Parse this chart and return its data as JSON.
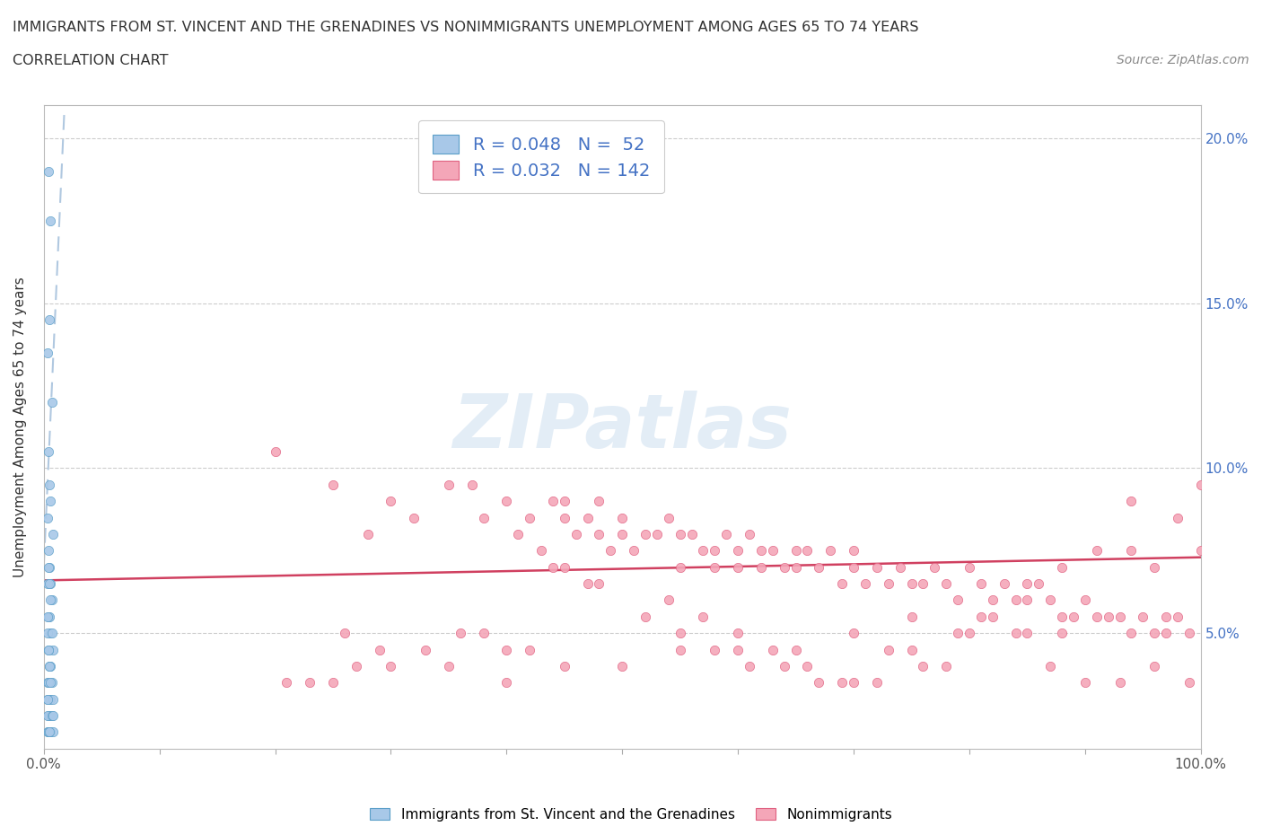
{
  "title_line1": "IMMIGRANTS FROM ST. VINCENT AND THE GRENADINES VS NONIMMIGRANTS UNEMPLOYMENT AMONG AGES 65 TO 74 YEARS",
  "title_line2": "CORRELATION CHART",
  "source_text": "Source: ZipAtlas.com",
  "ylabel": "Unemployment Among Ages 65 to 74 years",
  "xlim": [
    0,
    100
  ],
  "ylim": [
    1.5,
    21
  ],
  "yticks": [
    5,
    10,
    15,
    20
  ],
  "yticklabels": [
    "5.0%",
    "10.0%",
    "15.0%",
    "20.0%"
  ],
  "blue_R": 0.048,
  "blue_N": 52,
  "pink_R": 0.032,
  "pink_N": 142,
  "blue_color": "#a8c8e8",
  "blue_edge": "#5a9ec8",
  "pink_color": "#f4a6b8",
  "pink_edge": "#e06080",
  "blue_line_color": "#b0c8e0",
  "pink_line_color": "#d04060",
  "legend_label_blue": "Immigrants from St. Vincent and the Grenadines",
  "legend_label_pink": "Nonimmigrants",
  "watermark": "ZIPatlas",
  "blue_scatter_x": [
    0.4,
    0.6,
    0.5,
    0.3,
    0.7,
    0.4,
    0.5,
    0.6,
    0.3,
    0.8,
    0.4,
    0.5,
    0.6,
    0.3,
    0.7,
    0.4,
    0.5,
    0.6,
    0.3,
    0.8,
    0.4,
    0.5,
    0.6,
    0.3,
    0.7,
    0.4,
    0.5,
    0.6,
    0.3,
    0.8,
    0.4,
    0.5,
    0.6,
    0.3,
    0.7,
    0.4,
    0.5,
    0.6,
    0.3,
    0.8,
    0.4,
    0.5,
    0.6,
    0.3,
    0.7,
    0.4,
    0.5,
    0.6,
    0.3,
    0.8,
    0.4,
    0.5
  ],
  "blue_scatter_y": [
    19.0,
    17.5,
    14.5,
    13.5,
    12.0,
    10.5,
    9.5,
    9.0,
    8.5,
    8.0,
    7.5,
    7.0,
    6.5,
    6.5,
    6.0,
    5.5,
    5.5,
    5.0,
    5.0,
    4.5,
    4.5,
    4.0,
    4.0,
    3.5,
    3.5,
    3.5,
    3.0,
    3.0,
    3.0,
    3.0,
    2.5,
    2.5,
    2.5,
    2.5,
    2.5,
    2.0,
    2.0,
    2.0,
    2.0,
    2.0,
    7.0,
    6.5,
    6.0,
    5.5,
    5.0,
    4.5,
    4.0,
    3.5,
    3.0,
    2.5,
    2.0,
    2.0
  ],
  "pink_scatter_x": [
    20,
    25,
    28,
    30,
    32,
    35,
    37,
    38,
    40,
    41,
    42,
    43,
    44,
    45,
    45,
    46,
    47,
    48,
    48,
    49,
    50,
    50,
    51,
    52,
    53,
    54,
    55,
    55,
    56,
    57,
    58,
    58,
    59,
    60,
    60,
    61,
    62,
    62,
    63,
    64,
    65,
    65,
    66,
    67,
    68,
    69,
    70,
    70,
    71,
    72,
    73,
    74,
    75,
    76,
    77,
    78,
    79,
    80,
    81,
    82,
    83,
    84,
    85,
    86,
    87,
    88,
    89,
    90,
    91,
    92,
    93,
    94,
    95,
    96,
    97,
    98,
    99,
    100,
    26,
    33,
    36,
    40,
    44,
    47,
    52,
    55,
    58,
    61,
    64,
    67,
    70,
    73,
    76,
    79,
    82,
    85,
    88,
    91,
    94,
    97,
    29,
    38,
    42,
    45,
    48,
    54,
    57,
    60,
    63,
    66,
    69,
    72,
    75,
    78,
    81,
    84,
    87,
    90,
    93,
    96,
    99,
    100,
    98,
    96,
    94,
    88,
    85,
    80,
    75,
    70,
    65,
    60,
    55,
    50,
    45,
    40,
    35,
    30,
    25,
    21,
    23,
    27
  ],
  "pink_scatter_y": [
    10.5,
    9.5,
    8.0,
    9.0,
    8.5,
    9.5,
    9.5,
    8.5,
    9.0,
    8.0,
    8.5,
    7.5,
    9.0,
    9.0,
    8.5,
    8.0,
    8.5,
    8.0,
    9.0,
    7.5,
    8.5,
    8.0,
    7.5,
    8.0,
    8.0,
    8.5,
    7.0,
    8.0,
    8.0,
    7.5,
    7.0,
    7.5,
    8.0,
    7.0,
    7.5,
    8.0,
    7.0,
    7.5,
    7.5,
    7.0,
    7.5,
    7.0,
    7.5,
    7.0,
    7.5,
    6.5,
    7.0,
    7.5,
    6.5,
    7.0,
    6.5,
    7.0,
    6.5,
    6.5,
    7.0,
    6.5,
    6.0,
    7.0,
    6.5,
    6.0,
    6.5,
    6.0,
    6.0,
    6.5,
    6.0,
    5.5,
    5.5,
    6.0,
    5.5,
    5.5,
    5.5,
    5.0,
    5.5,
    5.0,
    5.0,
    5.5,
    5.0,
    9.5,
    5.0,
    4.5,
    5.0,
    4.5,
    7.0,
    6.5,
    5.5,
    5.0,
    4.5,
    4.0,
    4.0,
    3.5,
    3.5,
    4.5,
    4.0,
    5.0,
    5.5,
    6.5,
    7.0,
    7.5,
    9.0,
    5.5,
    4.5,
    5.0,
    4.5,
    7.0,
    6.5,
    6.0,
    5.5,
    5.0,
    4.5,
    4.0,
    3.5,
    3.5,
    4.5,
    4.0,
    5.5,
    5.0,
    4.0,
    3.5,
    3.5,
    4.0,
    3.5,
    7.5,
    8.5,
    7.0,
    7.5,
    5.0,
    5.0,
    5.0,
    5.5,
    5.0,
    4.5,
    4.5,
    4.5,
    4.0,
    4.0,
    3.5,
    4.0,
    4.0,
    3.5,
    3.5,
    3.5,
    4.0
  ]
}
